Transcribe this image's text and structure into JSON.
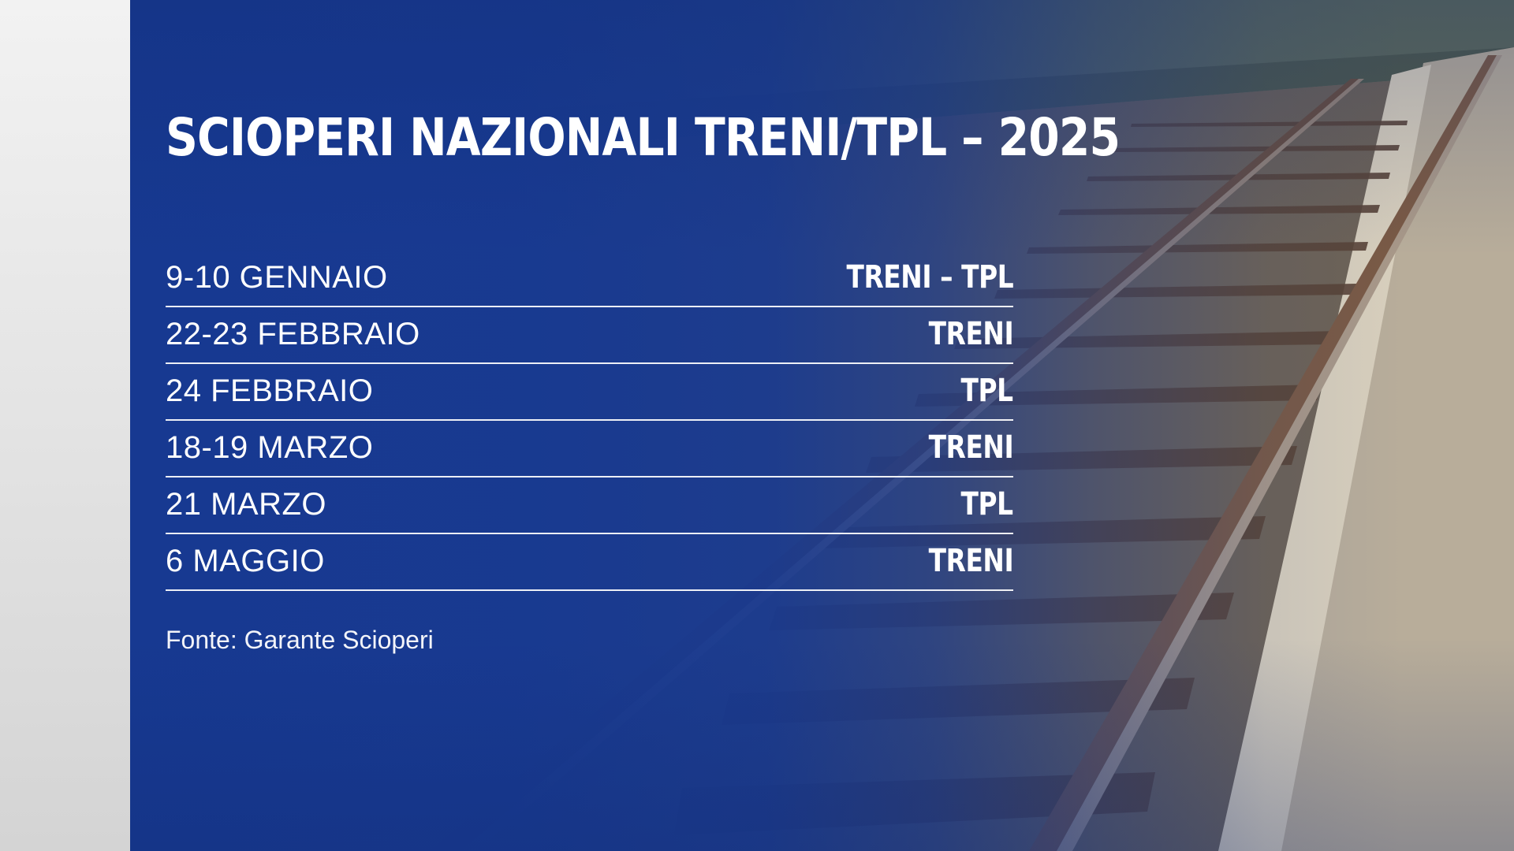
{
  "title": "SCIOPERI NAZIONALI TRENI/TPL – 2025",
  "strikes": [
    {
      "date": "9-10 GENNAIO",
      "mode": "TRENI – TPL"
    },
    {
      "date": "22-23 FEBBRAIO",
      "mode": "TRENI"
    },
    {
      "date": "24 FEBBRAIO",
      "mode": "TPL"
    },
    {
      "date": "18-19 MARZO",
      "mode": "TRENI"
    },
    {
      "date": "21 MARZO",
      "mode": "TPL"
    },
    {
      "date": "6 MAGGIO",
      "mode": "TRENI"
    }
  ],
  "source": "Fonte: Garante Scioperi",
  "colors": {
    "overlay_blue": "#173991",
    "text": "#ffffff",
    "left_panel": "#e6e6e6"
  }
}
